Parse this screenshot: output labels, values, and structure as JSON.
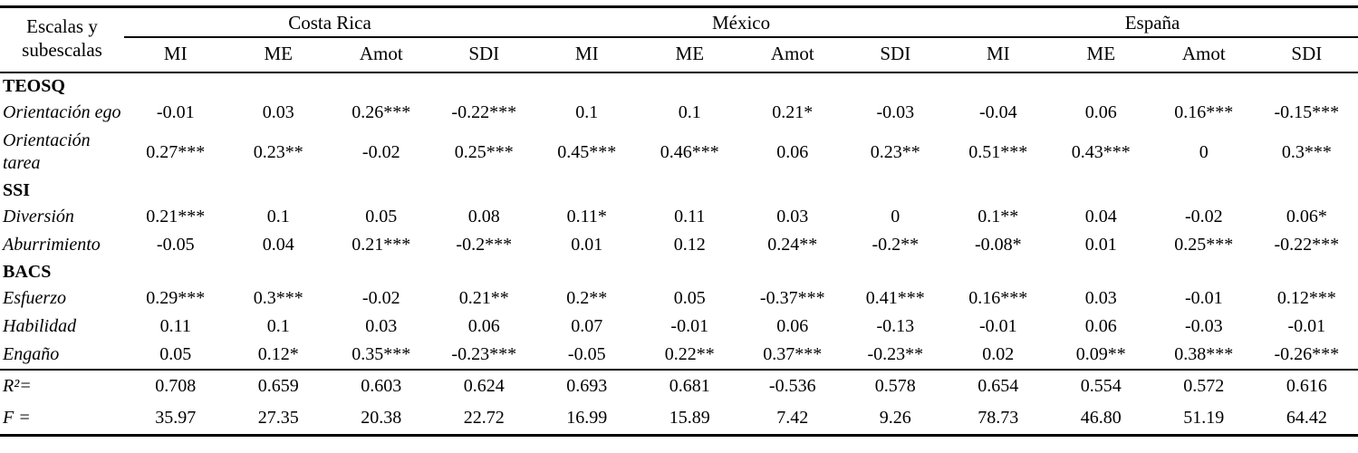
{
  "table": {
    "row_header": "Escalas y subescalas",
    "groups": [
      {
        "label": "Costa Rica"
      },
      {
        "label": "México"
      },
      {
        "label": "España"
      }
    ],
    "col_headers": [
      "MI",
      "ME",
      "Amot",
      "SDI"
    ],
    "rows": [
      {
        "type": "section",
        "label": "TEOSQ"
      },
      {
        "type": "data",
        "label": "Orientación ego",
        "values": [
          "-0.01",
          "0.03",
          "0.26***",
          "-0.22***",
          "0.1",
          "0.1",
          "0.21*",
          "-0.03",
          "-0.04",
          "0.06",
          "0.16***",
          "-0.15***"
        ]
      },
      {
        "type": "data",
        "label": "Orientación tarea",
        "values": [
          "0.27***",
          "0.23**",
          "-0.02",
          "0.25***",
          "0.45***",
          "0.46***",
          "0.06",
          "0.23**",
          "0.51***",
          "0.43***",
          "0",
          "0.3***"
        ]
      },
      {
        "type": "section",
        "label": "SSI"
      },
      {
        "type": "data",
        "label": "Diversión",
        "values": [
          "0.21***",
          "0.1",
          "0.05",
          "0.08",
          "0.11*",
          "0.11",
          "0.03",
          "0",
          "0.1**",
          "0.04",
          "-0.02",
          "0.06*"
        ]
      },
      {
        "type": "data",
        "label": "Aburrimiento",
        "values": [
          "-0.05",
          "0.04",
          "0.21***",
          "-0.2***",
          "0.01",
          "0.12",
          "0.24**",
          "-0.2**",
          "-0.08*",
          "0.01",
          "0.25***",
          "-0.22***"
        ]
      },
      {
        "type": "section",
        "label": "BACS"
      },
      {
        "type": "data",
        "label": "Esfuerzo",
        "values": [
          "0.29***",
          "0.3***",
          "-0.02",
          "0.21**",
          "0.2**",
          "0.05",
          "-0.37***",
          "0.41***",
          "0.16***",
          "0.03",
          "-0.01",
          "0.12***"
        ]
      },
      {
        "type": "data",
        "label": "Habilidad",
        "values": [
          "0.11",
          "0.1",
          "0.03",
          "0.06",
          "0.07",
          "-0.01",
          "0.06",
          "-0.13",
          "-0.01",
          "0.06",
          "-0.03",
          "-0.01"
        ]
      },
      {
        "type": "data",
        "label": "Engaño",
        "rule_below": true,
        "values": [
          "0.05",
          "0.12*",
          "0.35***",
          "-0.23***",
          "-0.05",
          "0.22**",
          "0.37***",
          "-0.23**",
          "0.02",
          "0.09**",
          "0.38***",
          "-0.26***"
        ]
      },
      {
        "type": "stat",
        "label": "R²=",
        "values": [
          "0.708",
          "0.659",
          "0.603",
          "0.624",
          "0.693",
          "0.681",
          "-0.536",
          "0.578",
          "0.654",
          "0.554",
          "0.572",
          "0.616"
        ]
      },
      {
        "type": "stat",
        "label": "F =",
        "values": [
          "35.97",
          "27.35",
          "20.38",
          "22.72",
          "16.99",
          "15.89",
          "7.42",
          "9.26",
          "78.73",
          "46.80",
          "51.19",
          "64.42"
        ]
      }
    ]
  }
}
